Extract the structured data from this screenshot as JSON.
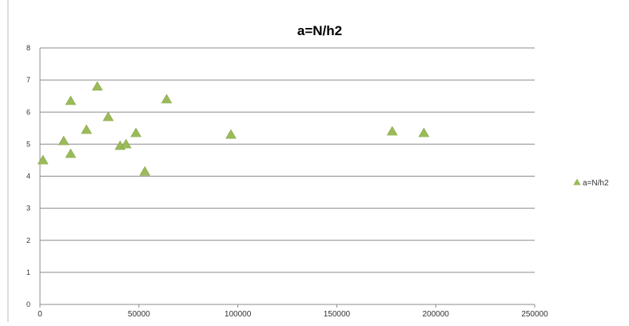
{
  "chart_data": {
    "type": "scatter",
    "title": "a=N/h2",
    "xlabel": "",
    "ylabel": "",
    "xlim": [
      0,
      250000
    ],
    "ylim": [
      0,
      8
    ],
    "x_ticks": [
      0,
      50000,
      100000,
      150000,
      200000,
      250000
    ],
    "y_ticks": [
      0,
      1,
      2,
      3,
      4,
      5,
      6,
      7,
      8
    ],
    "x_tick_labels": [
      "0",
      "50000",
      "100000",
      "150000",
      "200000",
      "250000"
    ],
    "y_tick_labels": [
      "0",
      "1",
      "2",
      "3",
      "4",
      "5",
      "6",
      "7",
      "8"
    ],
    "grid": "horizontal",
    "legend_position": "right",
    "series": [
      {
        "name": "a=N/h2",
        "marker": "triangle",
        "color": "#9bbb59",
        "points": [
          {
            "x": 1500,
            "y": 4.5
          },
          {
            "x": 12000,
            "y": 5.1
          },
          {
            "x": 15500,
            "y": 4.7
          },
          {
            "x": 15500,
            "y": 6.35
          },
          {
            "x": 23500,
            "y": 5.45
          },
          {
            "x": 29000,
            "y": 6.8
          },
          {
            "x": 34500,
            "y": 5.85
          },
          {
            "x": 40500,
            "y": 4.95
          },
          {
            "x": 43500,
            "y": 5.0
          },
          {
            "x": 48500,
            "y": 5.35
          },
          {
            "x": 53000,
            "y": 4.15
          },
          {
            "x": 64000,
            "y": 6.4
          },
          {
            "x": 96500,
            "y": 5.3
          },
          {
            "x": 178000,
            "y": 5.4
          },
          {
            "x": 194000,
            "y": 5.35
          }
        ]
      }
    ]
  }
}
